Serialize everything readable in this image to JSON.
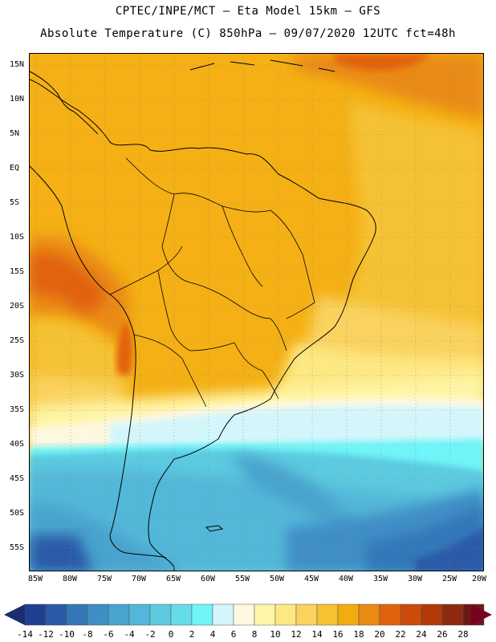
{
  "header": {
    "line1": "CPTEC/INPE/MCT –  Eta Model 15km – GFS",
    "line2": "Absolute Temperature (C) 850hPa – 09/07/2020 12UTC fct=48h"
  },
  "map": {
    "lat_labels": [
      "15N",
      "10N",
      "5N",
      "EQ",
      "5S",
      "10S",
      "15S",
      "20S",
      "25S",
      "30S",
      "35S",
      "40S",
      "45S",
      "50S",
      "55S"
    ],
    "lon_labels": [
      "85W",
      "80W",
      "75W",
      "70W",
      "65W",
      "60W",
      "55W",
      "50W",
      "45W",
      "40W",
      "35W",
      "30W",
      "25W",
      "20W"
    ]
  },
  "colorbar": {
    "labels": [
      "-14",
      "-12",
      "-10",
      "-8",
      "-6",
      "-4",
      "-2",
      "0",
      "2",
      "4",
      "6",
      "8",
      "10",
      "12",
      "14",
      "16",
      "18",
      "20",
      "22",
      "24",
      "26",
      "28"
    ],
    "colors": [
      "#1f3f8f",
      "#2a5aa8",
      "#3377b8",
      "#3f8ec6",
      "#49a3cf",
      "#52b7d8",
      "#5ccadf",
      "#66dce8",
      "#6ff5f8",
      "#d4f6fb",
      "#fff8e0",
      "#fff5a6",
      "#fde883",
      "#fad25e",
      "#f6c234",
      "#f2ac10",
      "#ea8a12",
      "#e2620c",
      "#cc4a0a",
      "#b23a0a",
      "#8e2a10",
      "#6a1a12"
    ],
    "low_arrow_color": "#1a2e6e",
    "high_arrow_color": "#7a0020"
  }
}
